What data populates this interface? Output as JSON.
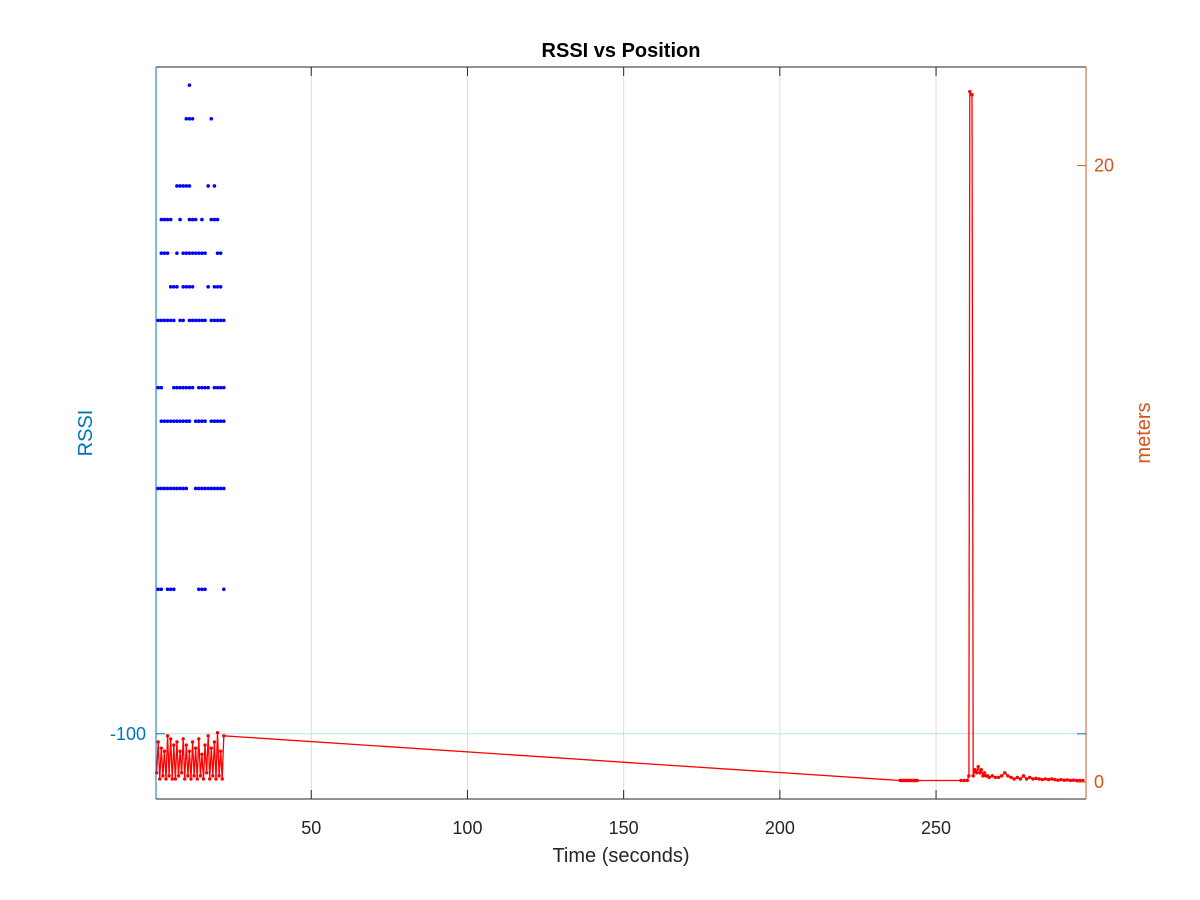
{
  "chart_data": {
    "type": "scatter",
    "title": "RSSI vs Position",
    "xlabel": "Time (seconds)",
    "ylabel_left": "RSSI",
    "ylabel_right": "meters",
    "xlim": [
      0.3,
      298
    ],
    "ylim_left": [
      -101.94,
      -80.16
    ],
    "ylim_right": [
      -0.55,
      23.2
    ],
    "xticks": [
      50,
      100,
      150,
      200,
      250
    ],
    "xtick_labels": [
      "50",
      "100",
      "150",
      "200",
      "250"
    ],
    "yticks_left": [
      -100
    ],
    "ytick_labels_left": [
      "-100"
    ],
    "yticks_right": [
      0,
      20
    ],
    "ytick_labels_right": [
      "0",
      "20"
    ],
    "grid": "vertical",
    "colors": {
      "left_axis": "#0072BD",
      "right_axis": "#D95319",
      "rssi": "#0000FF",
      "position": "#FF0000",
      "grid": "#DCDCDC",
      "box": "#262626"
    },
    "series": [
      {
        "axis": "left",
        "style": "dots",
        "points": [
          [
            11.0,
            -80.7
          ],
          [
            10.0,
            -81.7
          ],
          [
            11.0,
            -81.7
          ],
          [
            12.0,
            -81.7
          ],
          [
            18.0,
            -81.7
          ],
          [
            7.0,
            -83.7
          ],
          [
            8.0,
            -83.7
          ],
          [
            9.0,
            -83.7
          ],
          [
            10.0,
            -83.7
          ],
          [
            11.0,
            -83.7
          ],
          [
            17.0,
            -83.7
          ],
          [
            19.0,
            -83.7
          ],
          [
            2.0,
            -84.7
          ],
          [
            3.0,
            -84.7
          ],
          [
            4.0,
            -84.7
          ],
          [
            5.0,
            -84.7
          ],
          [
            8.0,
            -84.7
          ],
          [
            11.0,
            -84.7
          ],
          [
            12.0,
            -84.7
          ],
          [
            13.0,
            -84.7
          ],
          [
            15.0,
            -84.7
          ],
          [
            18.0,
            -84.7
          ],
          [
            19.0,
            -84.7
          ],
          [
            20.0,
            -84.7
          ],
          [
            2.0,
            -85.7
          ],
          [
            3.0,
            -85.7
          ],
          [
            4.0,
            -85.7
          ],
          [
            7.0,
            -85.7
          ],
          [
            9.0,
            -85.7
          ],
          [
            10.0,
            -85.7
          ],
          [
            11.0,
            -85.7
          ],
          [
            12.0,
            -85.7
          ],
          [
            13.0,
            -85.7
          ],
          [
            14.0,
            -85.7
          ],
          [
            15.0,
            -85.7
          ],
          [
            16.0,
            -85.7
          ],
          [
            20.0,
            -85.7
          ],
          [
            21.0,
            -85.7
          ],
          [
            5.0,
            -86.7
          ],
          [
            6.0,
            -86.7
          ],
          [
            7.0,
            -86.7
          ],
          [
            9.0,
            -86.7
          ],
          [
            10.0,
            -86.7
          ],
          [
            11.0,
            -86.7
          ],
          [
            12.0,
            -86.7
          ],
          [
            17.0,
            -86.7
          ],
          [
            19.0,
            -86.7
          ],
          [
            20.0,
            -86.7
          ],
          [
            21.0,
            -86.7
          ],
          [
            1.0,
            -87.7
          ],
          [
            2.0,
            -87.7
          ],
          [
            3.0,
            -87.7
          ],
          [
            4.0,
            -87.7
          ],
          [
            5.0,
            -87.7
          ],
          [
            6.0,
            -87.7
          ],
          [
            8.0,
            -87.7
          ],
          [
            9.0,
            -87.7
          ],
          [
            11.0,
            -87.7
          ],
          [
            12.0,
            -87.7
          ],
          [
            13.0,
            -87.7
          ],
          [
            14.0,
            -87.7
          ],
          [
            15.0,
            -87.7
          ],
          [
            16.0,
            -87.7
          ],
          [
            18.0,
            -87.7
          ],
          [
            19.0,
            -87.7
          ],
          [
            20.0,
            -87.7
          ],
          [
            21.0,
            -87.7
          ],
          [
            22.0,
            -87.7
          ],
          [
            1.0,
            -89.7
          ],
          [
            2.0,
            -89.7
          ],
          [
            6.0,
            -89.7
          ],
          [
            7.0,
            -89.7
          ],
          [
            8.0,
            -89.7
          ],
          [
            9.0,
            -89.7
          ],
          [
            10.0,
            -89.7
          ],
          [
            11.0,
            -89.7
          ],
          [
            12.0,
            -89.7
          ],
          [
            14.0,
            -89.7
          ],
          [
            15.0,
            -89.7
          ],
          [
            16.0,
            -89.7
          ],
          [
            17.0,
            -89.7
          ],
          [
            19.0,
            -89.7
          ],
          [
            20.0,
            -89.7
          ],
          [
            21.0,
            -89.7
          ],
          [
            22.0,
            -89.7
          ],
          [
            2.0,
            -90.7
          ],
          [
            3.0,
            -90.7
          ],
          [
            4.0,
            -90.7
          ],
          [
            5.0,
            -90.7
          ],
          [
            6.0,
            -90.7
          ],
          [
            7.0,
            -90.7
          ],
          [
            8.0,
            -90.7
          ],
          [
            9.0,
            -90.7
          ],
          [
            10.0,
            -90.7
          ],
          [
            11.0,
            -90.7
          ],
          [
            13.0,
            -90.7
          ],
          [
            14.0,
            -90.7
          ],
          [
            15.0,
            -90.7
          ],
          [
            16.0,
            -90.7
          ],
          [
            18.0,
            -90.7
          ],
          [
            19.0,
            -90.7
          ],
          [
            20.0,
            -90.7
          ],
          [
            21.0,
            -90.7
          ],
          [
            22.0,
            -90.7
          ],
          [
            1.0,
            -92.7
          ],
          [
            2.0,
            -92.7
          ],
          [
            3.0,
            -92.7
          ],
          [
            4.0,
            -92.7
          ],
          [
            5.0,
            -92.7
          ],
          [
            6.0,
            -92.7
          ],
          [
            7.0,
            -92.7
          ],
          [
            8.0,
            -92.7
          ],
          [
            9.0,
            -92.7
          ],
          [
            10.0,
            -92.7
          ],
          [
            13.0,
            -92.7
          ],
          [
            14.0,
            -92.7
          ],
          [
            15.0,
            -92.7
          ],
          [
            16.0,
            -92.7
          ],
          [
            17.0,
            -92.7
          ],
          [
            18.0,
            -92.7
          ],
          [
            19.0,
            -92.7
          ],
          [
            20.0,
            -92.7
          ],
          [
            21.0,
            -92.7
          ],
          [
            22.0,
            -92.7
          ],
          [
            1.0,
            -95.7
          ],
          [
            2.0,
            -95.7
          ],
          [
            4.0,
            -95.7
          ],
          [
            5.0,
            -95.7
          ],
          [
            6.0,
            -95.7
          ],
          [
            14.0,
            -95.7
          ],
          [
            15.0,
            -95.7
          ],
          [
            16.0,
            -95.7
          ],
          [
            22.0,
            -95.7
          ]
        ]
      },
      {
        "axis": "right",
        "style": "line-markers",
        "points": [
          [
            0.5,
            0.3
          ],
          [
            1.0,
            1.3
          ],
          [
            1.5,
            0.1
          ],
          [
            2.0,
            1.1
          ],
          [
            2.5,
            0.2
          ],
          [
            3.0,
            1.0
          ],
          [
            3.5,
            0.1
          ],
          [
            4.0,
            1.5
          ],
          [
            4.5,
            0.2
          ],
          [
            5.0,
            1.4
          ],
          [
            5.5,
            0.1
          ],
          [
            6.0,
            1.2
          ],
          [
            6.5,
            0.1
          ],
          [
            7.0,
            1.3
          ],
          [
            7.5,
            0.2
          ],
          [
            8.0,
            1.0
          ],
          [
            8.5,
            0.3
          ],
          [
            9.0,
            1.4
          ],
          [
            9.5,
            0.1
          ],
          [
            10.0,
            1.2
          ],
          [
            10.5,
            0.2
          ],
          [
            11.0,
            1.0
          ],
          [
            11.5,
            0.1
          ],
          [
            12.0,
            1.3
          ],
          [
            12.5,
            0.2
          ],
          [
            13.0,
            1.1
          ],
          [
            13.5,
            0.1
          ],
          [
            14.0,
            1.4
          ],
          [
            14.5,
            0.2
          ],
          [
            15.0,
            0.9
          ],
          [
            15.5,
            0.1
          ],
          [
            16.0,
            1.2
          ],
          [
            16.5,
            0.3
          ],
          [
            17.0,
            1.5
          ],
          [
            17.5,
            0.1
          ],
          [
            18.0,
            1.1
          ],
          [
            18.5,
            0.2
          ],
          [
            19.0,
            1.3
          ],
          [
            19.5,
            0.1
          ],
          [
            20.0,
            1.6
          ],
          [
            20.5,
            0.2
          ],
          [
            21.0,
            1.0
          ],
          [
            21.5,
            0.1
          ],
          [
            22.0,
            1.5
          ],
          [
            238.5,
            0.05
          ],
          [
            239.0,
            0.05
          ],
          [
            239.5,
            0.05
          ],
          [
            240.0,
            0.05
          ],
          [
            240.5,
            0.05
          ],
          [
            241.0,
            0.05
          ],
          [
            241.5,
            0.05
          ],
          [
            242.0,
            0.05
          ],
          [
            242.5,
            0.05
          ],
          [
            243.0,
            0.05
          ],
          [
            243.5,
            0.05
          ],
          [
            244.0,
            0.05
          ],
          [
            258.0,
            0.05
          ],
          [
            259.0,
            0.05
          ],
          [
            260.0,
            0.05
          ],
          [
            260.5,
            0.2
          ],
          [
            260.8,
            22.4
          ],
          [
            261.5,
            22.3
          ],
          [
            261.9,
            0.2
          ],
          [
            262.5,
            0.4
          ],
          [
            263.0,
            0.3
          ],
          [
            263.5,
            0.5
          ],
          [
            264.0,
            0.3
          ],
          [
            264.5,
            0.4
          ],
          [
            265.0,
            0.2
          ],
          [
            265.5,
            0.3
          ],
          [
            266.0,
            0.2
          ],
          [
            266.5,
            0.2
          ],
          [
            267.0,
            0.15
          ],
          [
            268.0,
            0.2
          ],
          [
            269.0,
            0.15
          ],
          [
            270.0,
            0.15
          ],
          [
            271.0,
            0.2
          ],
          [
            272.0,
            0.3
          ],
          [
            273.0,
            0.2
          ],
          [
            274.0,
            0.15
          ],
          [
            275.0,
            0.1
          ],
          [
            276.0,
            0.15
          ],
          [
            277.0,
            0.1
          ],
          [
            278.0,
            0.2
          ],
          [
            279.0,
            0.1
          ],
          [
            280.0,
            0.15
          ],
          [
            281.0,
            0.1
          ],
          [
            282.0,
            0.12
          ],
          [
            283.0,
            0.1
          ],
          [
            284.0,
            0.08
          ],
          [
            285.0,
            0.1
          ],
          [
            286.0,
            0.08
          ],
          [
            287.0,
            0.1
          ],
          [
            288.0,
            0.08
          ],
          [
            289.0,
            0.06
          ],
          [
            290.0,
            0.08
          ],
          [
            291.0,
            0.06
          ],
          [
            292.0,
            0.07
          ],
          [
            293.0,
            0.05
          ],
          [
            294.0,
            0.06
          ],
          [
            295.0,
            0.05
          ],
          [
            296.0,
            0.05
          ],
          [
            297.0,
            0.05
          ]
        ]
      }
    ]
  }
}
